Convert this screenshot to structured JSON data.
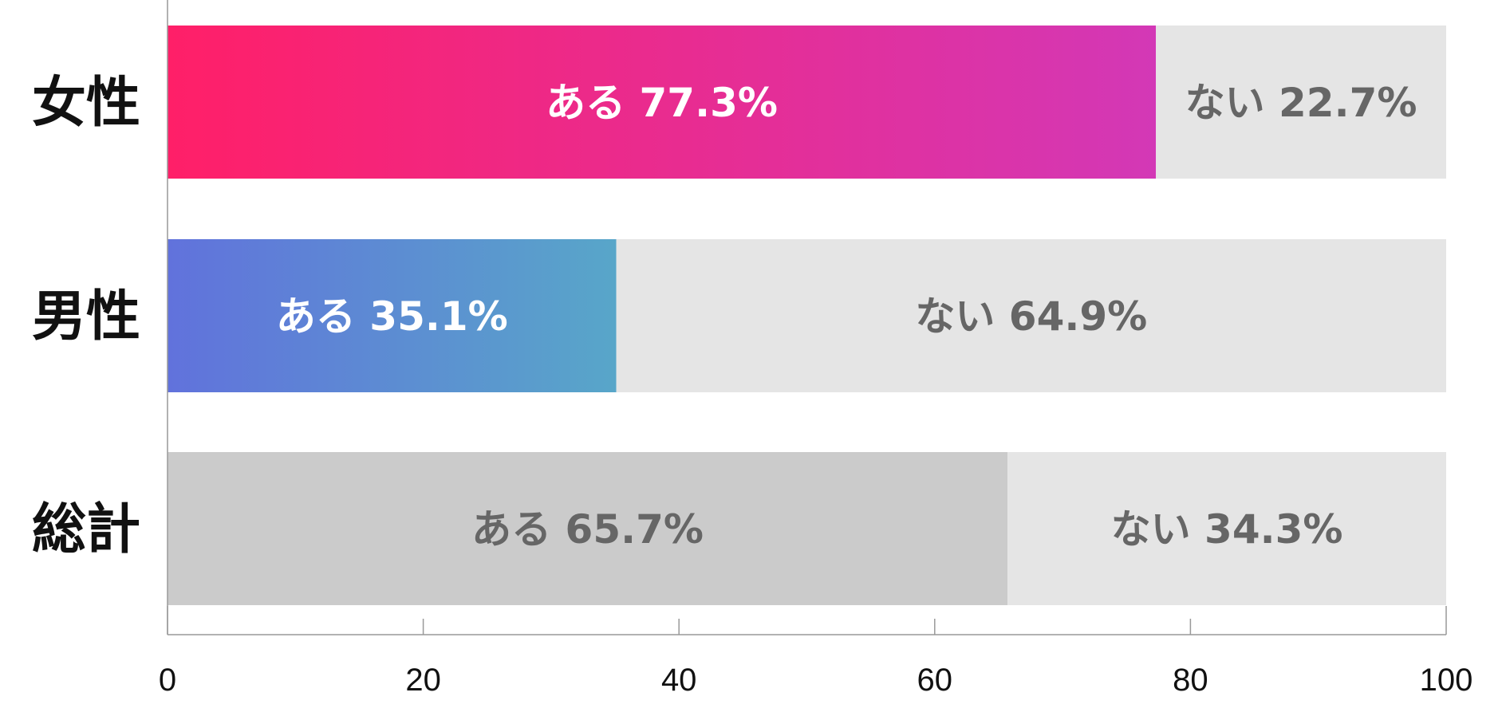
{
  "chart_data": {
    "type": "bar",
    "orientation": "horizontal",
    "stacked": true,
    "xlim": [
      0,
      100
    ],
    "x_ticks": [
      0,
      20,
      40,
      60,
      80,
      100
    ],
    "x_tick_labels": [
      "0",
      "20",
      "40",
      "60",
      "80",
      "100"
    ],
    "categories": [
      "女性",
      "男性",
      "総計"
    ],
    "series": [
      {
        "name": "ある",
        "values": [
          77.3,
          35.1,
          65.7
        ]
      },
      {
        "name": "ない",
        "values": [
          22.7,
          64.9,
          34.3
        ]
      }
    ],
    "segment_labels": [
      [
        "ある 77.3%",
        "ない 22.7%"
      ],
      [
        "ある 35.1%",
        "ない 64.9%"
      ],
      [
        "ある 65.7%",
        "ない 34.3%"
      ]
    ],
    "grid": false,
    "legend": "none"
  },
  "colors": {
    "female_gradient": [
      "#ff1f68",
      "#d338b6"
    ],
    "male_gradient": [
      "#6172dc",
      "#58a6c9"
    ],
    "total_yes": "#cbcbcb",
    "no_segment": "#e5e5e5",
    "label_on_color": "#ffffff",
    "label_on_gray": "#666666",
    "axis": "#999999"
  }
}
